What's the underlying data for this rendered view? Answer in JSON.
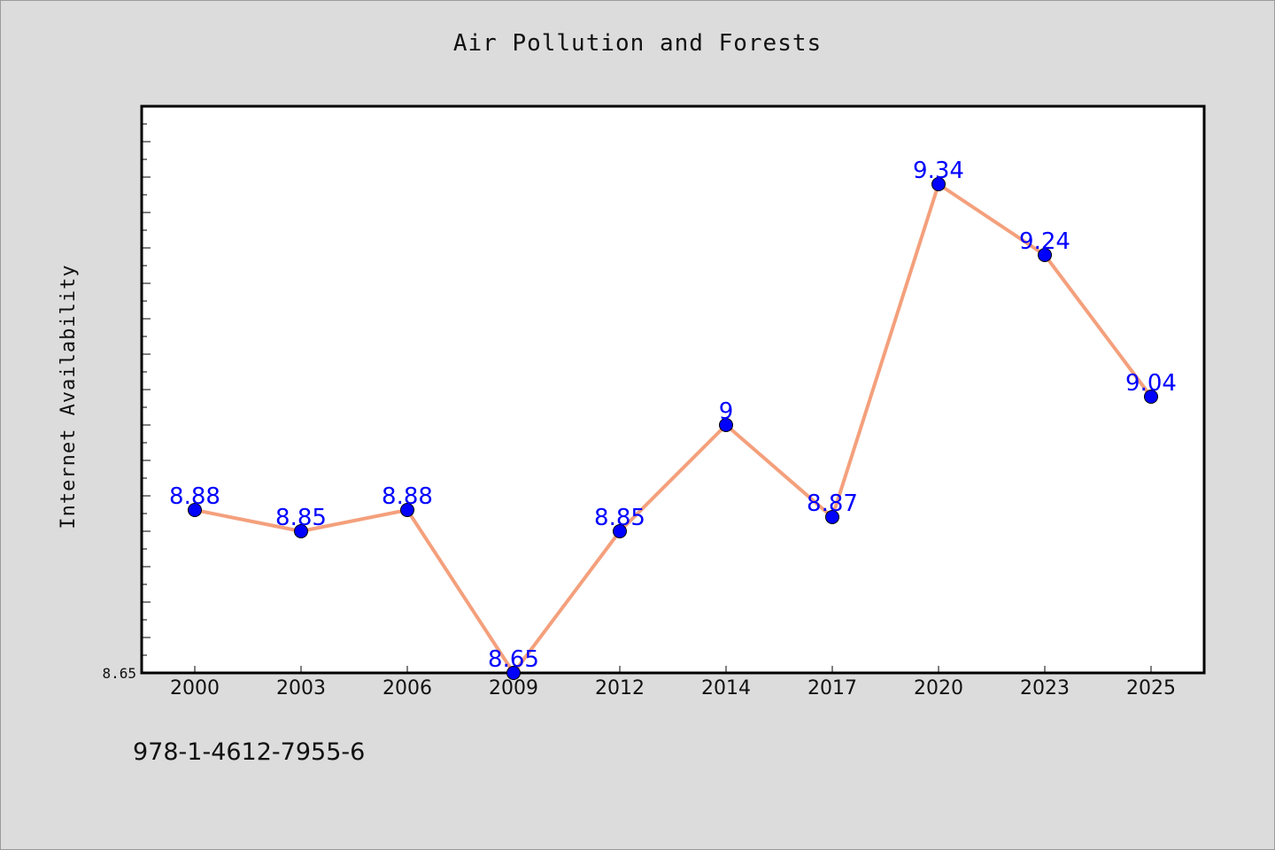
{
  "chart_data": {
    "type": "line",
    "title": "Air Pollution and Forests",
    "xlabel": "",
    "ylabel": "Internet Availability",
    "categories": [
      "2000",
      "2003",
      "2006",
      "2009",
      "2012",
      "2014",
      "2017",
      "2020",
      "2023",
      "2025"
    ],
    "series": [
      {
        "values": [
          8.88,
          8.85,
          8.88,
          8.65,
          8.85,
          9.0,
          8.87,
          9.34,
          9.24,
          9.04
        ],
        "labels": [
          "8.88",
          "8.85",
          "8.88",
          "8.65",
          "8.85",
          "9",
          "8.87",
          "9.34",
          "9.24",
          "9.04"
        ],
        "line_color": "#f4a07c",
        "marker_color": "#0000ff"
      }
    ],
    "ylim": [
      8.65,
      9.45
    ],
    "yticks_labeled": [
      "8.65"
    ],
    "grid": false,
    "legend": "none"
  },
  "annotation": "978-1-4612-7955-6",
  "colors": {
    "background": "#dcdcdc",
    "plot_background": "#ffffff",
    "label_color": "#0000ff"
  }
}
